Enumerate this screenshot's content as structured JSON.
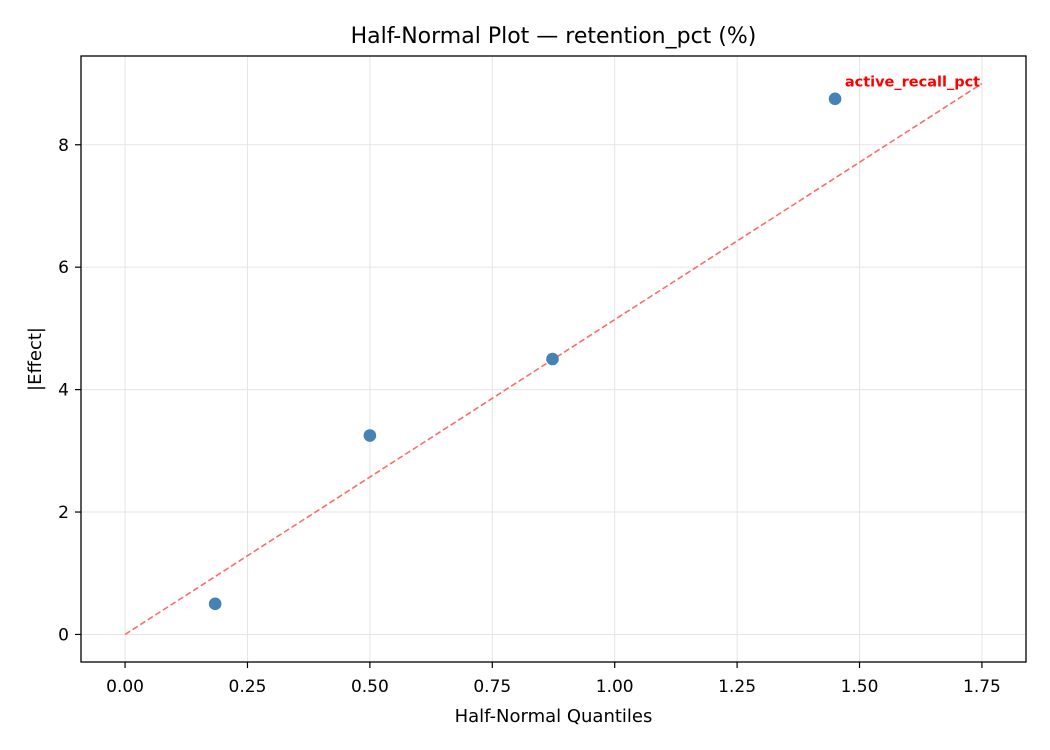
{
  "chart_data": {
    "type": "scatter",
    "title": "Half-Normal Plot — retention_pct (%)",
    "xlabel": "Half-Normal Quantiles",
    "ylabel": "|Effect|",
    "xlim": [
      -0.09,
      1.84
    ],
    "ylim": [
      -0.45,
      9.45
    ],
    "xticks": [
      0.0,
      0.25,
      0.5,
      0.75,
      1.0,
      1.25,
      1.5,
      1.75
    ],
    "xtick_labels": [
      "0.00",
      "0.25",
      "0.50",
      "0.75",
      "1.00",
      "1.25",
      "1.50",
      "1.75"
    ],
    "yticks": [
      0,
      2,
      4,
      6,
      8
    ],
    "ytick_labels": [
      "0",
      "2",
      "4",
      "6",
      "8"
    ],
    "grid": true,
    "points": [
      {
        "x": 0.184,
        "y": 0.5
      },
      {
        "x": 0.5,
        "y": 3.25
      },
      {
        "x": 0.873,
        "y": 4.5
      },
      {
        "x": 1.45,
        "y": 8.75
      }
    ],
    "reference_line": {
      "x": [
        0.0,
        1.75
      ],
      "y": [
        0.0,
        9.0
      ],
      "style": "dashed"
    },
    "annotations": [
      {
        "text": "active_recall_pct",
        "x": 1.47,
        "y": 8.95
      }
    ],
    "colors": {
      "points": "#4682b4",
      "reference_line": "#ff6b6b",
      "annotation": "#ff0000",
      "grid": "#e5e5e5"
    }
  }
}
